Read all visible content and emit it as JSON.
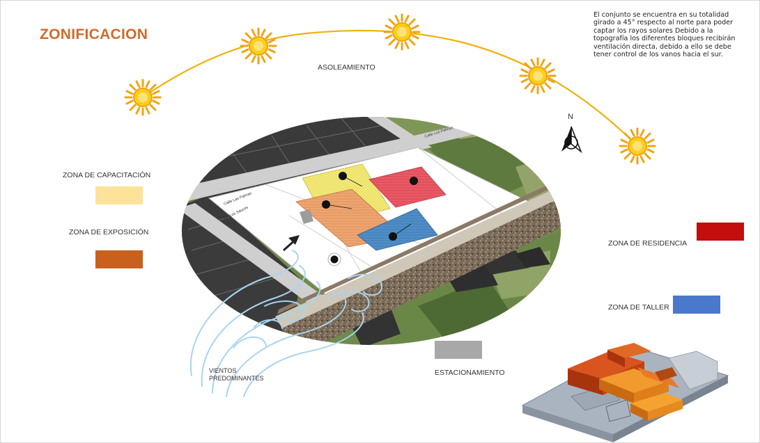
{
  "title": "ZONIFICACION",
  "note": "El conjunto se encuentra en su totalidad girado a 45° respecto al norte para poder captar los rayos solares Debido a la topografía los diferentes bloques recibirán ventilación directa, debido a ello se debe tener control de los vanos hacia el sur.",
  "labels": {
    "sun_path": "ASOLEAMIENTO",
    "north": "N",
    "wind": "VIENTOS PREDOMINANTES",
    "street_1": "Calle Las Palmas",
    "street_2": "Calle Los Sauces",
    "street_3": "Calle Los Palmas"
  },
  "legend": [
    {
      "name": "ZONA DE CAPACITACIÓN",
      "color": "#fde39a"
    },
    {
      "name": "ZONA DE EXPOSICIÓN",
      "color": "#c8601e"
    },
    {
      "name": "ZONA DE RESIDENCIA",
      "color": "#c40d0d"
    },
    {
      "name": "ZONA DE TALLER",
      "color": "#4a78cc"
    },
    {
      "name": "ESTACIONAMIENTO",
      "color": "#a8a8a8"
    }
  ],
  "icons": {
    "sun": "sun-icon",
    "north_arrow": "north-arrow-icon",
    "wind": "wind-swirl-icon",
    "building_3d": "isometric-building-icon"
  }
}
